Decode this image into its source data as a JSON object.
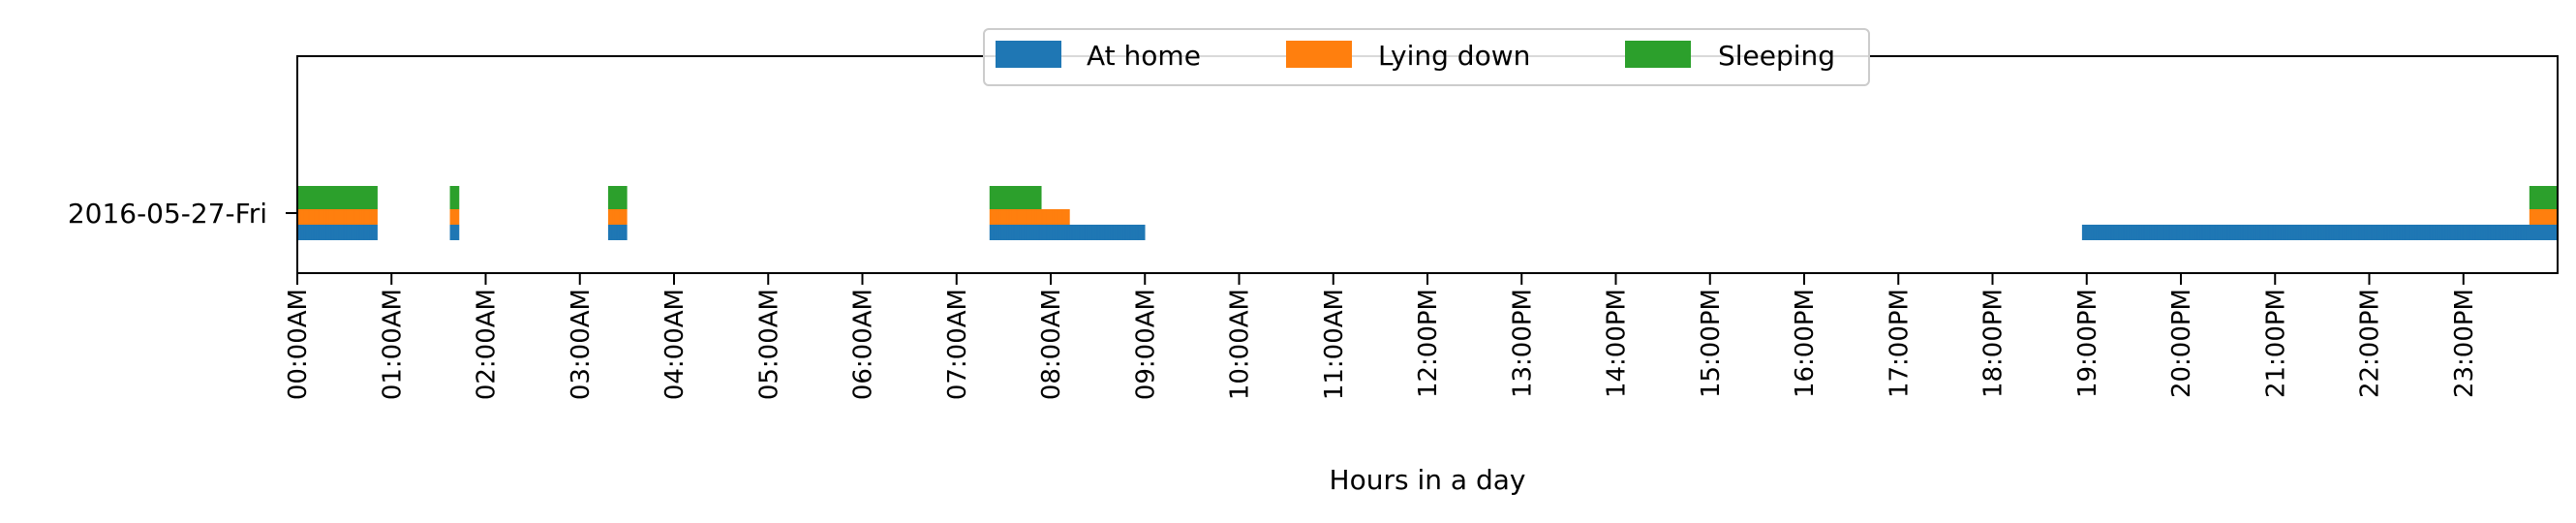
{
  "chart_data": {
    "type": "bar",
    "orientation": "horizontal",
    "day_label": "2016-05-27-Fri",
    "xlabel": "Hours in a day",
    "ylabel": "",
    "title": "",
    "xlim_hours": [
      0,
      24
    ],
    "tick_labels": [
      "00:00AM",
      "01:00AM",
      "02:00AM",
      "03:00AM",
      "04:00AM",
      "05:00AM",
      "06:00AM",
      "07:00AM",
      "08:00AM",
      "09:00AM",
      "10:00AM",
      "11:00AM",
      "12:00PM",
      "13:00PM",
      "14:00PM",
      "15:00PM",
      "16:00PM",
      "17:00PM",
      "18:00PM",
      "19:00PM",
      "20:00PM",
      "21:00PM",
      "22:00PM",
      "23:00PM"
    ],
    "grid": false,
    "legend_position": "top-center",
    "series": [
      {
        "name": "At home",
        "color": "#1f77b4",
        "intervals_hours": [
          [
            0.0,
            0.82
          ],
          [
            1.62,
            1.72
          ],
          [
            3.3,
            3.47
          ],
          [
            7.35,
            8.98
          ],
          [
            18.95,
            23.68
          ],
          [
            23.7,
            24.0
          ]
        ]
      },
      {
        "name": "Lying down",
        "color": "#ff7f0e",
        "intervals_hours": [
          [
            0.0,
            0.82
          ],
          [
            1.62,
            1.72
          ],
          [
            3.3,
            3.47
          ],
          [
            7.35,
            8.17
          ],
          [
            23.7,
            24.0
          ]
        ]
      },
      {
        "name": "Sleeping",
        "color": "#2ca02c",
        "intervals_hours": [
          [
            0.0,
            0.82
          ],
          [
            1.62,
            1.72
          ],
          [
            3.3,
            3.47
          ],
          [
            7.35,
            7.88
          ],
          [
            23.7,
            24.0
          ]
        ]
      }
    ]
  }
}
